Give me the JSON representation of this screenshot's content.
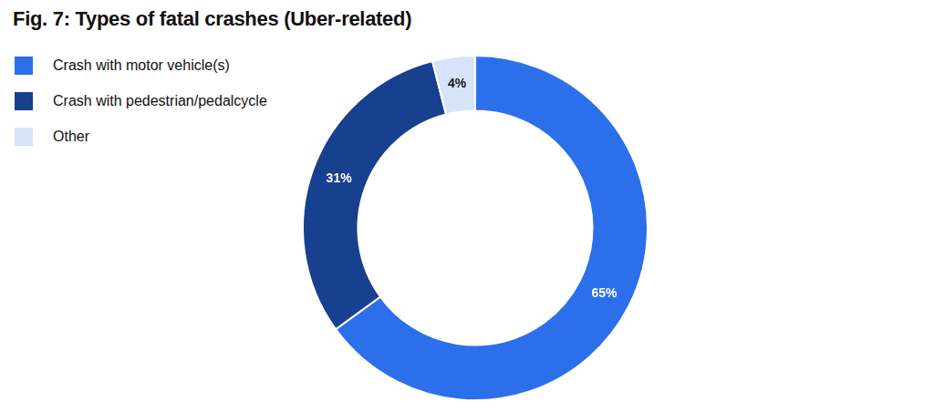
{
  "chart_data": {
    "type": "doughnut",
    "title": "Fig. 7: Types of fatal crashes (Uber-related)",
    "categories": [
      "Crash with motor vehicle(s)",
      "Crash with pedestrian/pedalcycle",
      "Other"
    ],
    "values": [
      65,
      31,
      4
    ],
    "value_labels": [
      "65%",
      "31%",
      "4%"
    ],
    "colors": [
      "#2b6fea",
      "#17408f",
      "#d7e3f9"
    ],
    "data_labels": true,
    "legend": "top-left"
  }
}
